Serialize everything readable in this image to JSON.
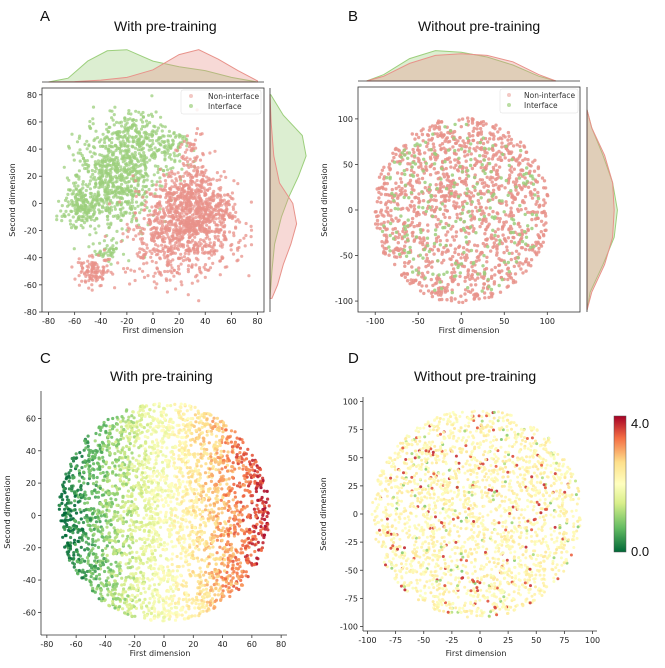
{
  "figure": {
    "colors": {
      "non_interface": "#e8928a",
      "interface": "#9ccf7c"
    }
  },
  "chart_data": [
    {
      "panel": "A",
      "title": "With pre-training",
      "type": "scatter",
      "xlabel": "First dimension",
      "ylabel": "Second dimension",
      "xlim": [
        -85,
        85
      ],
      "ylim": [
        -80,
        85
      ],
      "xticks": [
        -80,
        -60,
        -40,
        -20,
        0,
        20,
        40,
        60,
        80
      ],
      "yticks": [
        -80,
        -60,
        -40,
        -20,
        0,
        20,
        40,
        60,
        80
      ],
      "legend_placement": "top-right",
      "marginal_distributions": true,
      "series": [
        {
          "name": "Non-interface",
          "color": "#e8928a",
          "clusters": [
            {
              "cx": 22,
              "cy": -18,
              "sx": 20,
              "sy": 17,
              "n": 900
            },
            {
              "cx": 30,
              "cy": 5,
              "sx": 12,
              "sy": 10,
              "n": 200
            },
            {
              "cx": 45,
              "cy": -5,
              "sx": 10,
              "sy": 12,
              "n": 150
            },
            {
              "cx": -45,
              "cy": -50,
              "sx": 7,
              "sy": 5,
              "n": 110
            },
            {
              "cx": 30,
              "cy": 35,
              "sx": 5,
              "sy": 12,
              "n": 60
            }
          ],
          "marginal_x": [
            [
              -80,
              0
            ],
            [
              -60,
              0.01
            ],
            [
              -40,
              0.05
            ],
            [
              -20,
              0.12
            ],
            [
              0,
              0.32
            ],
            [
              20,
              0.72
            ],
            [
              35,
              0.85
            ],
            [
              50,
              0.6
            ],
            [
              65,
              0.3
            ],
            [
              80,
              0.03
            ]
          ],
          "marginal_y": [
            [
              -70,
              0.05
            ],
            [
              -60,
              0.2
            ],
            [
              -45,
              0.35
            ],
            [
              -30,
              0.55
            ],
            [
              -15,
              0.7
            ],
            [
              0,
              0.6
            ],
            [
              15,
              0.25
            ],
            [
              35,
              0.1
            ],
            [
              60,
              0.03
            ],
            [
              80,
              0
            ]
          ]
        },
        {
          "name": "Interface",
          "color": "#9ccf7c",
          "clusters": [
            {
              "cx": -30,
              "cy": 18,
              "sx": 16,
              "sy": 18,
              "n": 700
            },
            {
              "cx": -55,
              "cy": -3,
              "sx": 7,
              "sy": 8,
              "n": 150
            },
            {
              "cx": -12,
              "cy": 48,
              "sx": 12,
              "sy": 10,
              "n": 220
            },
            {
              "cx": 15,
              "cy": 40,
              "sx": 8,
              "sy": 7,
              "n": 80
            },
            {
              "cx": -35,
              "cy": -35,
              "sx": 5,
              "sy": 4,
              "n": 40
            }
          ],
          "marginal_x": [
            [
              -80,
              0
            ],
            [
              -65,
              0.1
            ],
            [
              -50,
              0.55
            ],
            [
              -35,
              0.82
            ],
            [
              -20,
              0.85
            ],
            [
              0,
              0.55
            ],
            [
              20,
              0.4
            ],
            [
              40,
              0.3
            ],
            [
              60,
              0.12
            ],
            [
              80,
              0
            ]
          ],
          "marginal_y": [
            [
              -70,
              0
            ],
            [
              -50,
              0.05
            ],
            [
              -30,
              0.12
            ],
            [
              -10,
              0.3
            ],
            [
              5,
              0.5
            ],
            [
              20,
              0.75
            ],
            [
              35,
              0.95
            ],
            [
              50,
              0.85
            ],
            [
              65,
              0.35
            ],
            [
              80,
              0.02
            ]
          ]
        }
      ]
    },
    {
      "panel": "B",
      "title": "Without pre-training",
      "type": "scatter",
      "xlabel": "First dimension",
      "ylabel": "Second dimension",
      "xlim": [
        -120,
        138
      ],
      "ylim": [
        -112,
        135
      ],
      "xticks": [
        -100,
        -50,
        0,
        50,
        100
      ],
      "yticks": [
        -100,
        -50,
        0,
        50,
        100
      ],
      "legend_placement": "top-right",
      "marginal_distributions": true,
      "series": [
        {
          "name": "Non-interface",
          "color": "#e8928a",
          "disc": {
            "cx": 0,
            "cy": 0,
            "r": 102,
            "n": 1300
          },
          "marginal_x": [
            [
              -110,
              0
            ],
            [
              -90,
              0.15
            ],
            [
              -60,
              0.55
            ],
            [
              -30,
              0.8
            ],
            [
              0,
              0.85
            ],
            [
              30,
              0.8
            ],
            [
              60,
              0.6
            ],
            [
              90,
              0.2
            ],
            [
              110,
              0
            ]
          ],
          "marginal_y": [
            [
              -110,
              0
            ],
            [
              -90,
              0.15
            ],
            [
              -60,
              0.55
            ],
            [
              -30,
              0.8
            ],
            [
              0,
              0.85
            ],
            [
              30,
              0.8
            ],
            [
              60,
              0.55
            ],
            [
              90,
              0.15
            ],
            [
              110,
              0
            ]
          ]
        },
        {
          "name": "Interface",
          "color": "#9ccf7c",
          "disc": {
            "cx": 0,
            "cy": 0,
            "r": 95,
            "n": 260
          },
          "marginal_x": [
            [
              -110,
              0
            ],
            [
              -90,
              0.2
            ],
            [
              -60,
              0.7
            ],
            [
              -30,
              0.95
            ],
            [
              0,
              0.9
            ],
            [
              30,
              0.75
            ],
            [
              60,
              0.5
            ],
            [
              90,
              0.15
            ],
            [
              110,
              0
            ]
          ],
          "marginal_y": [
            [
              -110,
              0
            ],
            [
              -90,
              0.1
            ],
            [
              -60,
              0.5
            ],
            [
              -30,
              0.85
            ],
            [
              0,
              0.95
            ],
            [
              30,
              0.8
            ],
            [
              60,
              0.5
            ],
            [
              90,
              0.15
            ],
            [
              110,
              0
            ]
          ]
        }
      ]
    },
    {
      "panel": "C",
      "title": "With pre-training",
      "type": "scatter",
      "xlabel": "First dimension",
      "ylabel": "Second dimension",
      "xlim": [
        -84,
        84
      ],
      "ylim": [
        -74,
        77
      ],
      "xticks": [
        -80,
        -60,
        -40,
        -20,
        0,
        20,
        40,
        60,
        80
      ],
      "yticks": [
        -60,
        -40,
        -20,
        0,
        20,
        40,
        60
      ],
      "colored_by": "continuous value",
      "color_gradient": "increases from left (green, 0.0) to right (red, 4.0)",
      "disc": {
        "cx": 0,
        "cy": 2,
        "rx": 72,
        "ry": 68,
        "n": 3000
      }
    },
    {
      "panel": "D",
      "title": "Without pre-training",
      "type": "scatter",
      "xlabel": "First dimension",
      "ylabel": "Second dimension",
      "xlim": [
        -104,
        104
      ],
      "ylim": [
        -104,
        104
      ],
      "xticks": [
        -100,
        -75,
        -50,
        -25,
        0,
        25,
        50,
        75,
        100
      ],
      "yticks": [
        -100,
        -75,
        -50,
        -25,
        0,
        25,
        50,
        75,
        100
      ],
      "colored_by": "continuous value",
      "color_gradient": "mostly uniform, yellow-orange with scattered red and green points",
      "disc": {
        "cx": -3,
        "cy": 0,
        "r": 93,
        "n": 2200
      }
    }
  ],
  "colorbar": {
    "max_label": "4.0",
    "min_label": "0.0",
    "min": 0.0,
    "max": 4.0,
    "colors": [
      "#006837",
      "#66bd63",
      "#d9ef8b",
      "#ffffbf",
      "#fee08b",
      "#f46d43",
      "#a50026"
    ]
  }
}
